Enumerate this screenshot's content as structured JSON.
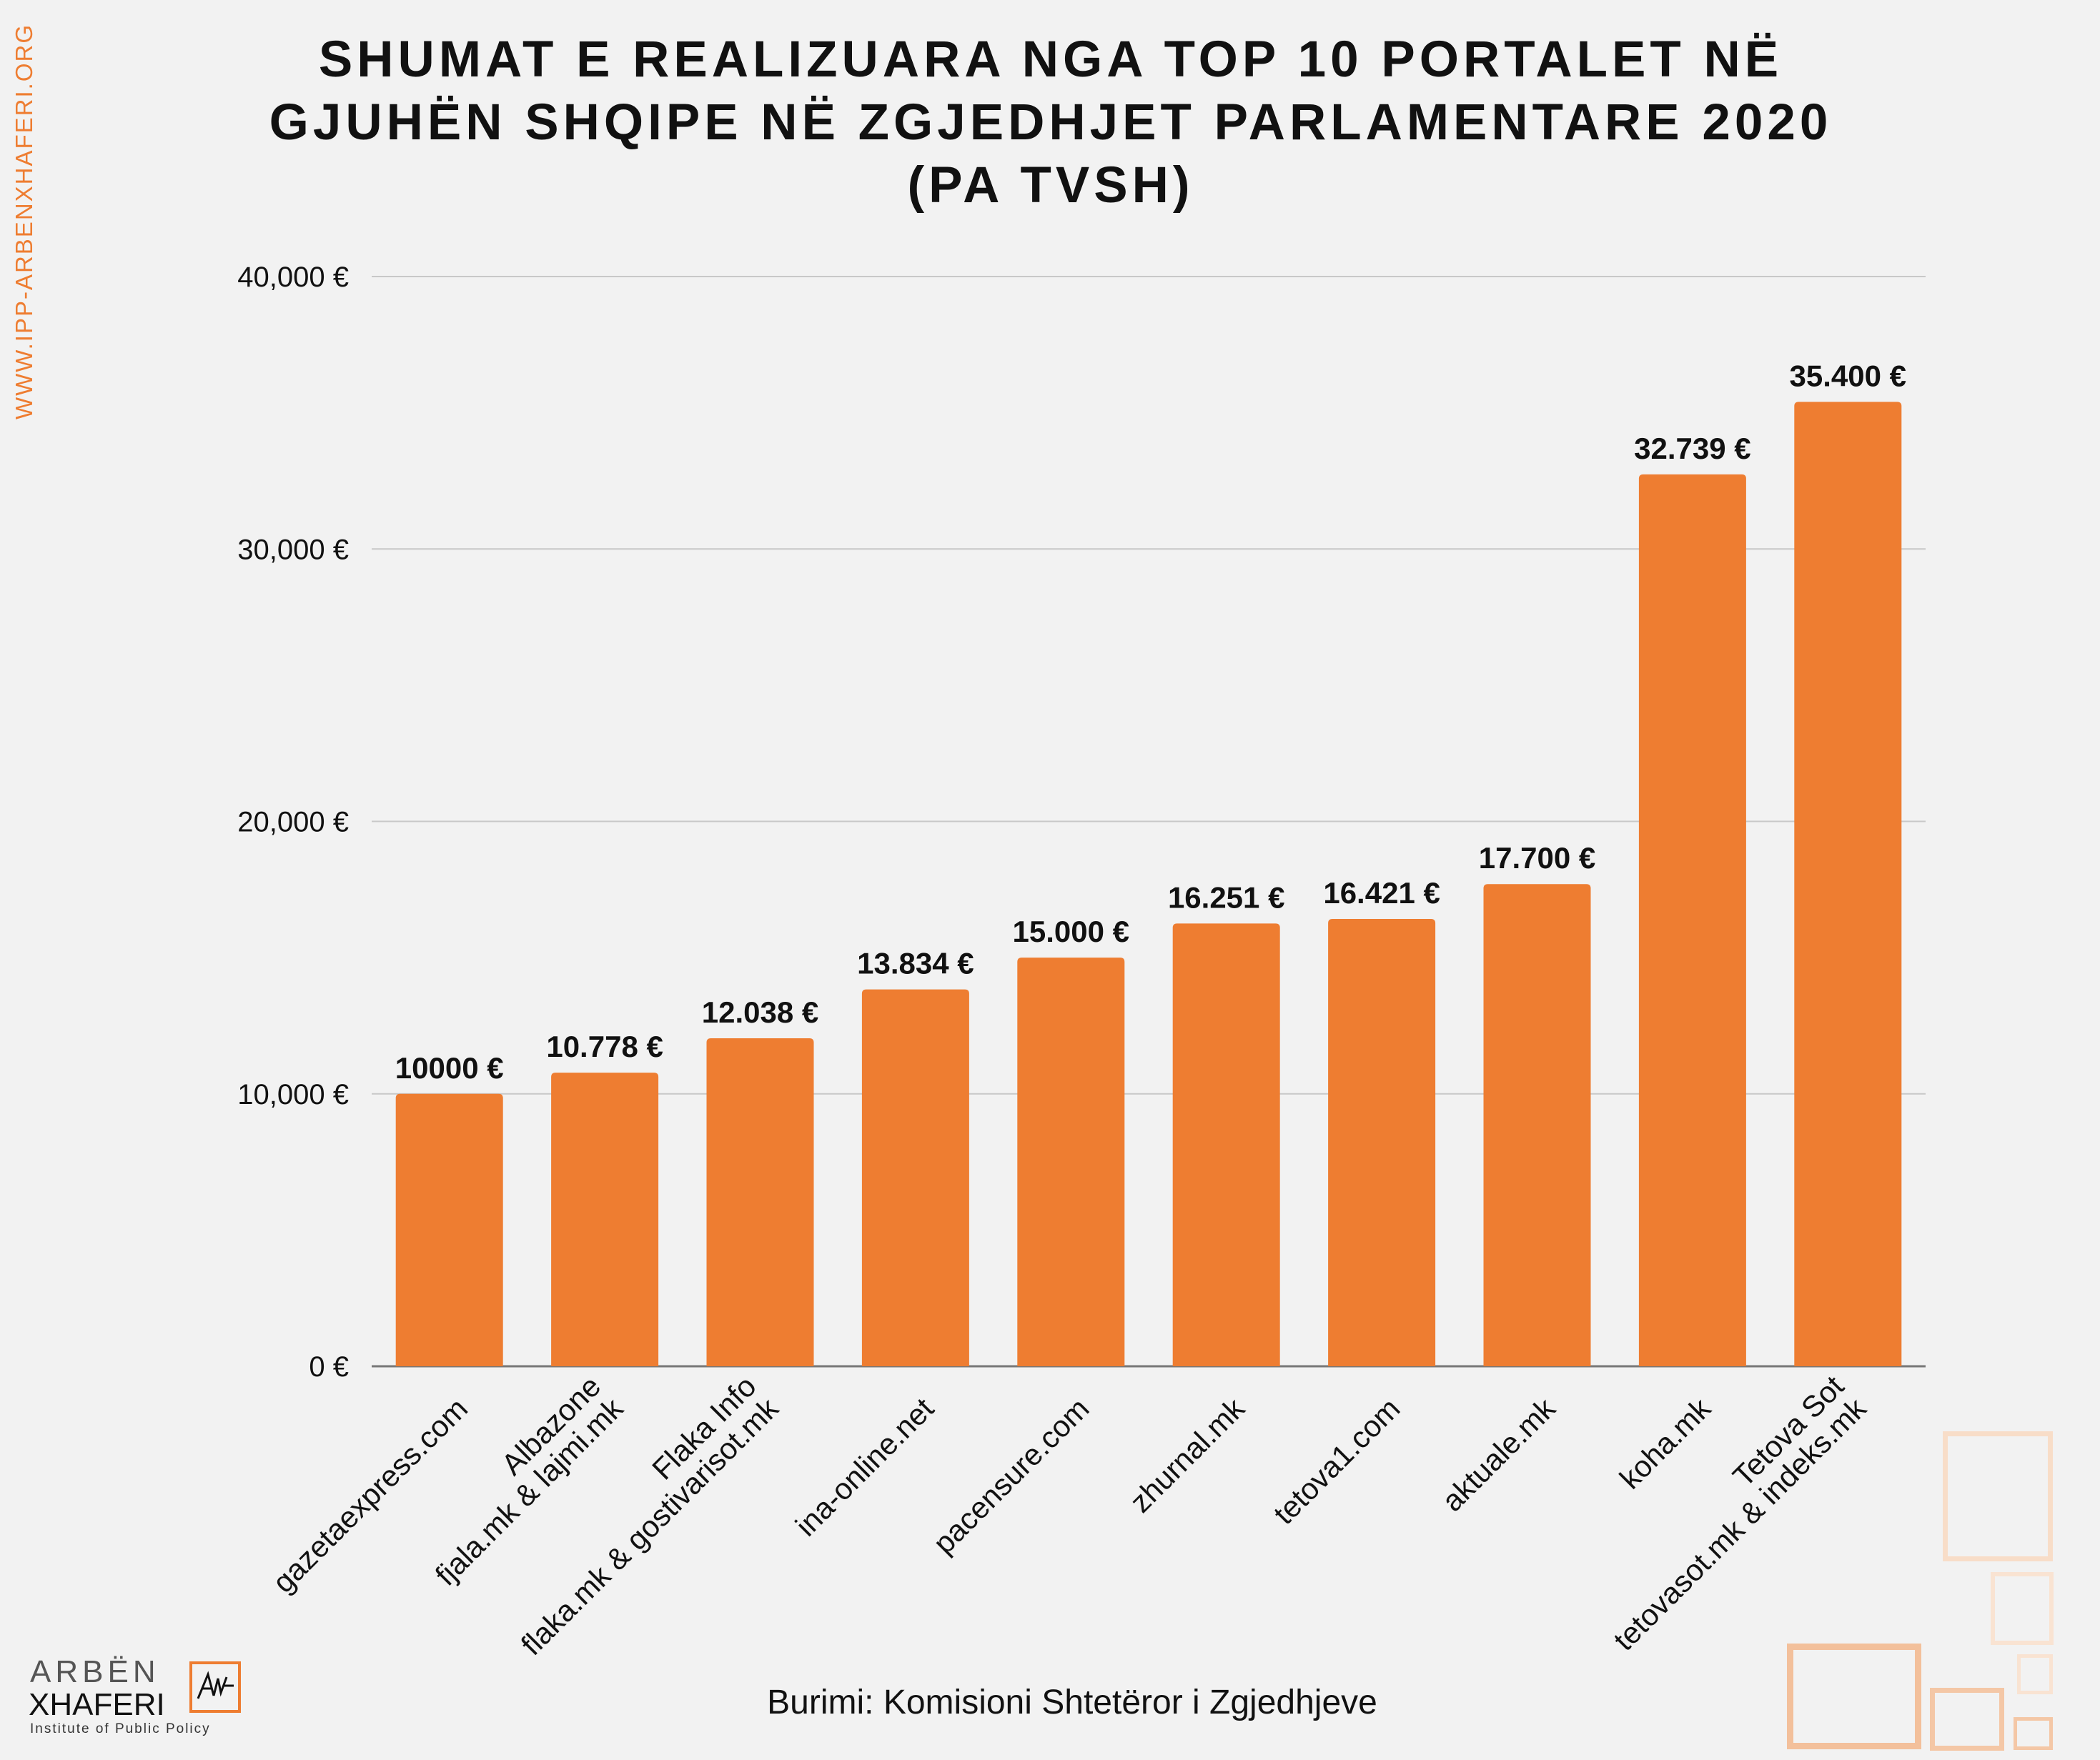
{
  "side_text": "WWW.IPP-ARBENXHAFERI.ORG",
  "title_lines": [
    "SHUMAT E REALIZUARA NGA  TOP 10 PORTALET NË",
    "GJUHËN SHQIPE NË ZGJEDHJET PARLAMENTARE 2020",
    "(PA TVSH)"
  ],
  "source": "Burimi: Komisioni Shtetëror i Zgjedhjeve",
  "logo": {
    "name_line1": "ARBËN",
    "name_line2": "XHAFERI",
    "subtitle": "Institute of Public Policy",
    "mark_icon": "signature-mark-icon"
  },
  "colors": {
    "bar": "#ee7d31",
    "accent": "#ee7d31",
    "background": "#f2f2f2"
  },
  "chart_data": {
    "type": "bar",
    "categories": [
      [
        "gazetaexpress.com"
      ],
      [
        "Albazone",
        "fjala.mk & lajmi.mk"
      ],
      [
        "Flaka Info",
        "flaka.mk & gostivarisot.mk"
      ],
      [
        "ina-online.net"
      ],
      [
        "pacensure.com"
      ],
      [
        "zhurnal.mk"
      ],
      [
        "tetova1.com"
      ],
      [
        "aktuale.mk"
      ],
      [
        "koha.mk"
      ],
      [
        "Tetova Sot",
        "tetovasot.mk & indeks.mk"
      ]
    ],
    "values": [
      10000,
      10778,
      12038,
      13834,
      15000,
      16251,
      16421,
      17700,
      32739,
      35400
    ],
    "value_labels": [
      "10000 €",
      "10.778 €",
      "12.038 €",
      "13.834 €",
      "15.000 €",
      "16.251 €",
      "16.421 €",
      "17.700 €",
      "32.739 €",
      "35.400 €"
    ],
    "yticks": [
      0,
      10000,
      20000,
      30000,
      40000
    ],
    "ytick_labels": [
      "0 €",
      "10,000 €",
      "20,000 €",
      "30,000 €",
      "40,000 €"
    ],
    "ylim": [
      0,
      40000
    ],
    "grid": true
  }
}
